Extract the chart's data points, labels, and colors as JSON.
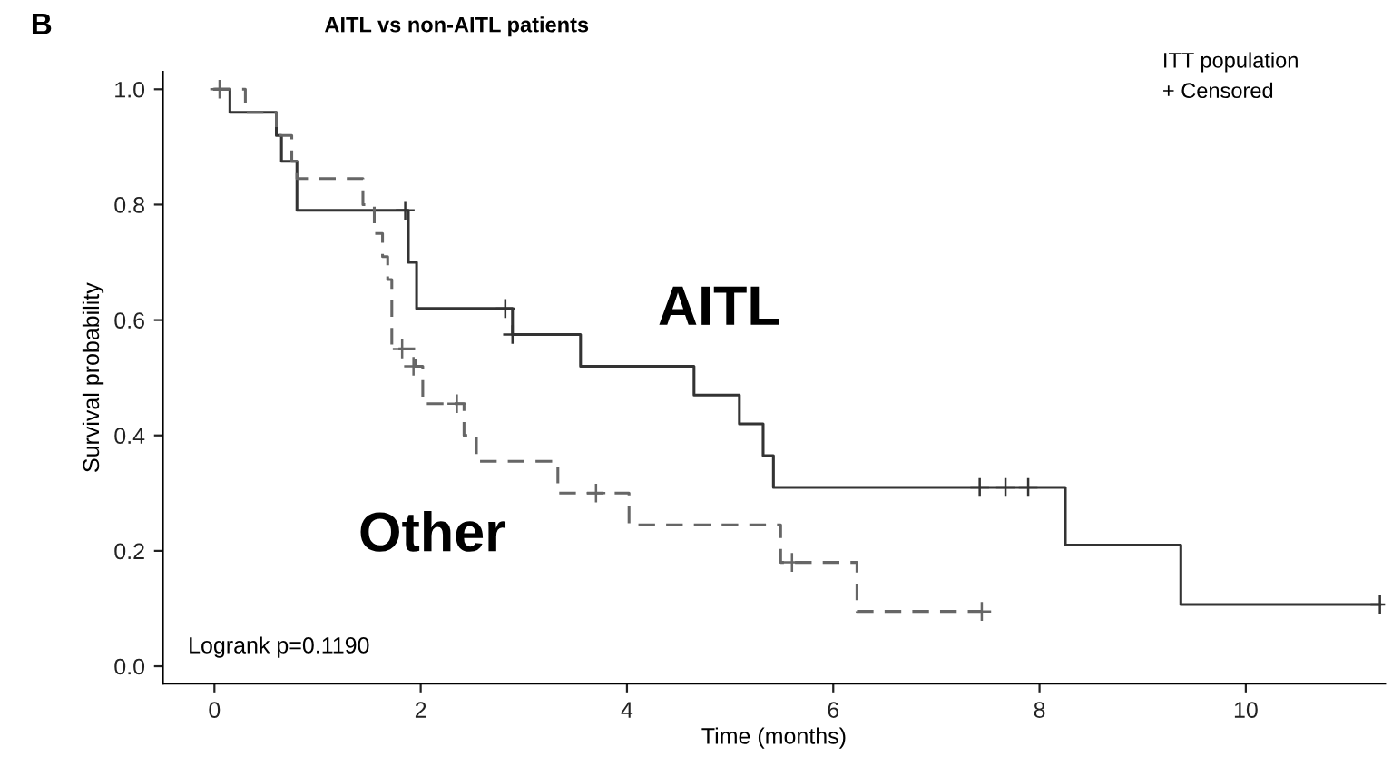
{
  "chart_data": {
    "type": "step",
    "title": "AITL vs non-AITL patients",
    "xlabel": "Time (months)",
    "ylabel": "Survival probability",
    "xlim": [
      -0.5,
      11.35
    ],
    "ylim": [
      -0.03,
      1.03
    ],
    "xticks": [
      0,
      2,
      4,
      6,
      8,
      10
    ],
    "yticks": [
      {
        "value": 0,
        "label": "0.0"
      },
      {
        "value": 0.2,
        "label": "0.2"
      },
      {
        "value": 0.4,
        "label": "0.4"
      },
      {
        "value": 0.6,
        "label": "0.6"
      },
      {
        "value": 0.8,
        "label": "0.8"
      },
      {
        "value": 1,
        "label": "1.0"
      }
    ],
    "grid": false,
    "legend": false,
    "series": [
      {
        "name": "AITL",
        "color": "#333333",
        "line_style": "solid",
        "marker": "none",
        "x": [
          0,
          0.15,
          0.6,
          0.65,
          0.8,
          1.88,
          1.96,
          2.89,
          3.55,
          4.65,
          5.09,
          5.32,
          5.42,
          8.25,
          9.37,
          11.3
        ],
        "values": [
          1.0,
          0.96,
          0.92,
          0.875,
          0.79,
          0.7,
          0.62,
          0.575,
          0.52,
          0.47,
          0.42,
          0.365,
          0.31,
          0.21,
          0.107,
          0.107
        ]
      },
      {
        "name": "Other",
        "color": "#666666",
        "line_style": "dashed",
        "marker": "none",
        "x": [
          0,
          0.3,
          0.6,
          0.75,
          0.8,
          1.44,
          1.55,
          1.63,
          1.68,
          1.72,
          1.95,
          2.02,
          2.42,
          2.54,
          3.33,
          4.02,
          5.49,
          6.23,
          7.44
        ],
        "values": [
          1.0,
          0.96,
          0.92,
          0.875,
          0.845,
          0.8,
          0.75,
          0.71,
          0.67,
          0.55,
          0.52,
          0.455,
          0.4,
          0.355,
          0.3,
          0.245,
          0.18,
          0.095,
          0.095
        ]
      },
      {
        "type": "scatter",
        "color": "#333333",
        "marker": "cross",
        "x": [
          1.85,
          2.82,
          2.89,
          7.42,
          7.67,
          7.89,
          11.3
        ],
        "values": [
          0.79,
          0.62,
          0.575,
          0.31,
          0.31,
          0.31,
          0.107
        ]
      },
      {
        "type": "scatter",
        "color": "#666666",
        "marker": "cross",
        "x": [
          0.05,
          1.82,
          1.93,
          2.35,
          3.7,
          5.6,
          7.44
        ],
        "values": [
          1.0,
          0.55,
          0.52,
          0.455,
          0.3,
          0.18,
          0.095
        ]
      }
    ],
    "annotations": [
      "B",
      "ITT population",
      "+ Censored",
      "Logrank p=0.1190"
    ]
  }
}
